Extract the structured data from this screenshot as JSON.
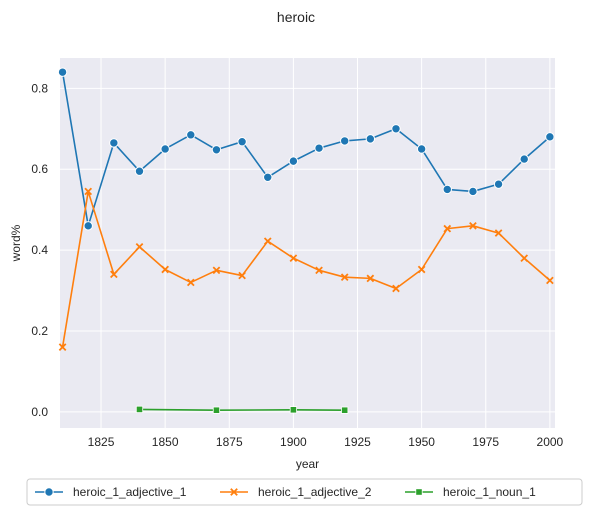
{
  "chart_data": {
    "type": "line",
    "title": "heroic",
    "xlabel": "year",
    "ylabel": "word%",
    "xlim": [
      1809,
      2002
    ],
    "ylim": [
      -0.04,
      0.875
    ],
    "xticks": [
      1825,
      1850,
      1875,
      1900,
      1925,
      1950,
      1975,
      2000
    ],
    "yticks": [
      0.0,
      0.2,
      0.4,
      0.6,
      0.8
    ],
    "ytick_labels": [
      "0.0",
      "0.2",
      "0.4",
      "0.6",
      "0.8"
    ],
    "grid": true,
    "legend_position": "below",
    "series": [
      {
        "name": "heroic_1_adjective_1",
        "color": "#1f77b4",
        "marker": "circle",
        "x": [
          1810,
          1820,
          1830,
          1840,
          1850,
          1860,
          1870,
          1880,
          1890,
          1900,
          1910,
          1920,
          1930,
          1940,
          1950,
          1960,
          1970,
          1980,
          1990,
          2000
        ],
        "y": [
          0.84,
          0.46,
          0.665,
          0.595,
          0.65,
          0.685,
          0.648,
          0.668,
          0.58,
          0.62,
          0.652,
          0.67,
          0.675,
          0.7,
          0.65,
          0.55,
          0.545,
          0.563,
          0.625,
          0.68
        ]
      },
      {
        "name": "heroic_1_adjective_2",
        "color": "#ff7f0e",
        "marker": "x",
        "x": [
          1810,
          1820,
          1830,
          1840,
          1850,
          1860,
          1870,
          1880,
          1890,
          1900,
          1910,
          1920,
          1930,
          1940,
          1950,
          1960,
          1970,
          1980,
          1990,
          2000
        ],
        "y": [
          0.16,
          0.545,
          0.34,
          0.408,
          0.352,
          0.32,
          0.35,
          0.337,
          0.422,
          0.38,
          0.35,
          0.333,
          0.33,
          0.305,
          0.352,
          0.453,
          0.46,
          0.442,
          0.38,
          0.325
        ]
      },
      {
        "name": "heroic_1_noun_1",
        "color": "#2ca02c",
        "marker": "square",
        "x": [
          1840,
          1870,
          1900,
          1920
        ],
        "y": [
          0.006,
          0.004,
          0.005,
          0.004
        ]
      }
    ]
  }
}
